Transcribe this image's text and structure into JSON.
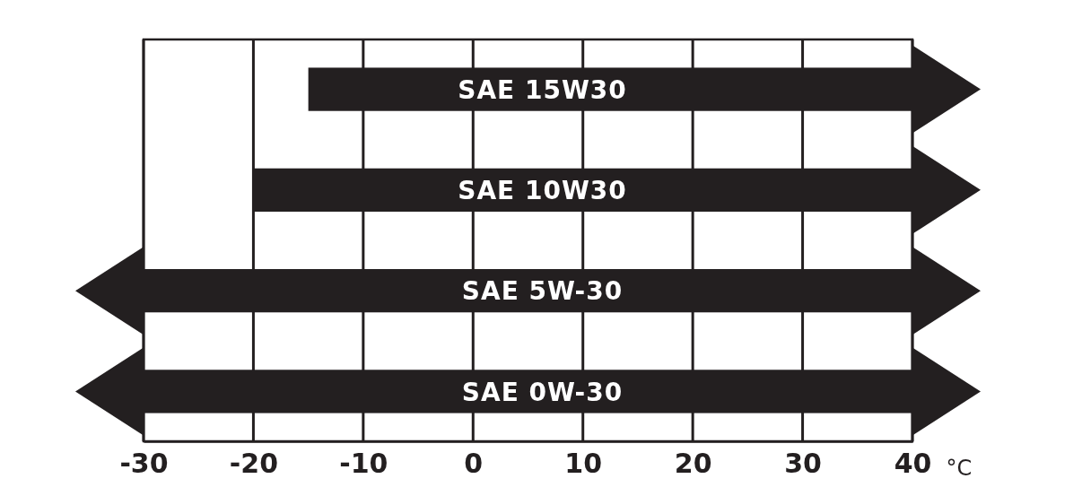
{
  "chart_data": {
    "type": "bar",
    "orientation": "horizontal",
    "xlabel": "°C",
    "categories": [
      "SAE 15W30",
      "SAE 10W30",
      "SAE 5W-30",
      "SAE 0W-30"
    ],
    "base": [
      -15,
      -20,
      -30,
      -30
    ],
    "values": [
      55,
      60,
      70,
      70
    ],
    "color": "#231f20",
    "xlim": [
      -30,
      40
    ],
    "xticks": [
      -30,
      -20,
      -10,
      0,
      10,
      20,
      30,
      40
    ],
    "grid": "x",
    "tick_labels": "x"
  }
}
